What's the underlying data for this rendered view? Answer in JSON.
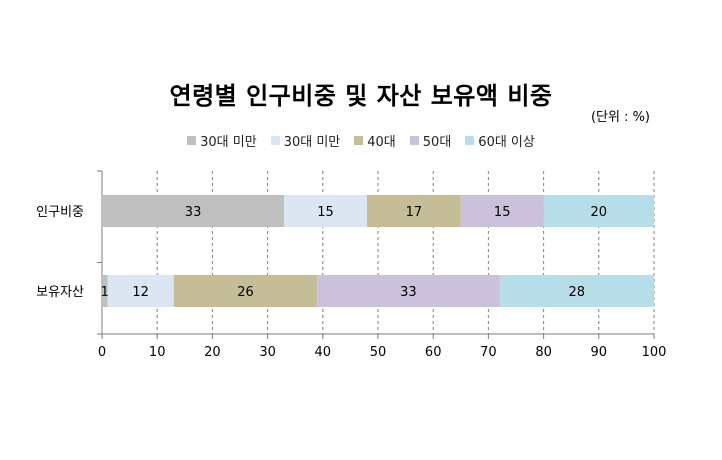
{
  "chart_data": {
    "type": "bar",
    "orientation": "horizontal",
    "stacked": true,
    "title": "연령별 인구비중 및 자산 보유액 비중",
    "unit_note": "(단위 : %)",
    "categories": [
      "인구비중",
      "보유자산"
    ],
    "series": [
      {
        "name": "30대 미만",
        "values": [
          33,
          1
        ],
        "color": "#bfbfbf"
      },
      {
        "name": "30대 미만",
        "values": [
          15,
          12
        ],
        "color": "#dce6f2"
      },
      {
        "name": "40대",
        "values": [
          17,
          26
        ],
        "color": "#c4bd97"
      },
      {
        "name": "50대",
        "values": [
          15,
          33
        ],
        "color": "#ccc1da"
      },
      {
        "name": "60대 이상",
        "values": [
          20,
          28
        ],
        "color": "#b7dde8"
      }
    ],
    "xlim": [
      0,
      100
    ],
    "xticks": [
      0,
      10,
      20,
      30,
      40,
      50,
      60,
      70,
      80,
      90,
      100
    ],
    "grid": "vertical-dashed",
    "legend_position": "top"
  }
}
